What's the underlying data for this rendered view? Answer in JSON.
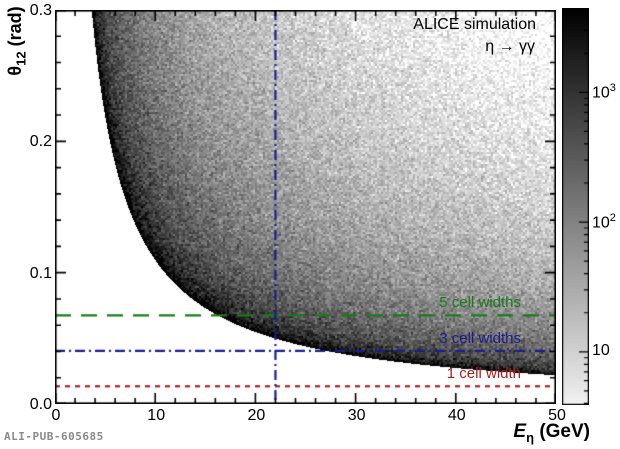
{
  "page": {
    "background": "#ffffff"
  },
  "chart_data": {
    "type": "heatmap",
    "title": "ALICE simulation",
    "process": "η → γγ",
    "watermark": "ALI-PUB-605685",
    "x_axis": {
      "label_base": "E",
      "label_sub": "η",
      "label_rest": " (GeV)",
      "min": 0,
      "max": 50,
      "major_ticks": [
        0,
        10,
        20,
        30,
        40,
        50
      ],
      "tick_labels": [
        "0",
        "10",
        "20",
        "30",
        "40",
        "50"
      ],
      "minor_step": 2
    },
    "y_axis": {
      "label_base": "θ",
      "label_sub": "12",
      "label_rest": " (rad)",
      "min": 0,
      "max": 0.3,
      "major_ticks": [
        0,
        0.1,
        0.2,
        0.3
      ],
      "tick_labels": [
        "0.0",
        "0.1",
        "0.2",
        "0.3"
      ],
      "minor_step": 0.02
    },
    "z_axis": {
      "scale": "log",
      "ticks": [
        {
          "value": 10,
          "base": "10",
          "exp": ""
        },
        {
          "value": 100,
          "base": "10",
          "exp": "2"
        },
        {
          "value": 1000,
          "base": "10",
          "exp": "3"
        }
      ],
      "log_min": 0.59,
      "log_max": 3.65
    },
    "heatmap_model": {
      "description": "Opening angle of photon pair from eta->gamma gamma decay vs eta energy; density hugs kinematic minimum theta_min(E)=2*asin(m_eta/E), white below it, log-scale grayscale counts above it",
      "eta_mass_gev": 0.548,
      "amplitude": 400,
      "singularity_power": 0.8,
      "singularity_soft": 0.02,
      "noise_sigma": 0.55,
      "color_log_min": 0.55,
      "color_log_max": 3.65
    },
    "reference_lines": [
      {
        "id": "five-cell-widths",
        "label": "5 cell widths",
        "orientation": "horizontal",
        "theta_rad": 0.0675,
        "color": "#1a7a1a",
        "dash": [
          16,
          10
        ]
      },
      {
        "id": "three-cell-widths",
        "label": "3 cell widths",
        "orientation": "horizontal",
        "theta_rad": 0.0405,
        "color": "#1c1c8f",
        "dash": [
          10,
          4,
          2,
          4
        ]
      },
      {
        "id": "one-cell-width",
        "label": "1 cell width",
        "orientation": "horizontal",
        "theta_rad": 0.0135,
        "color": "#a32222",
        "dash": [
          5,
          5
        ]
      },
      {
        "id": "vertical-energy",
        "label": "",
        "orientation": "vertical",
        "energy_gev": 22,
        "color": "#1c1c8f",
        "dash": [
          10,
          4,
          2,
          4
        ]
      }
    ]
  }
}
